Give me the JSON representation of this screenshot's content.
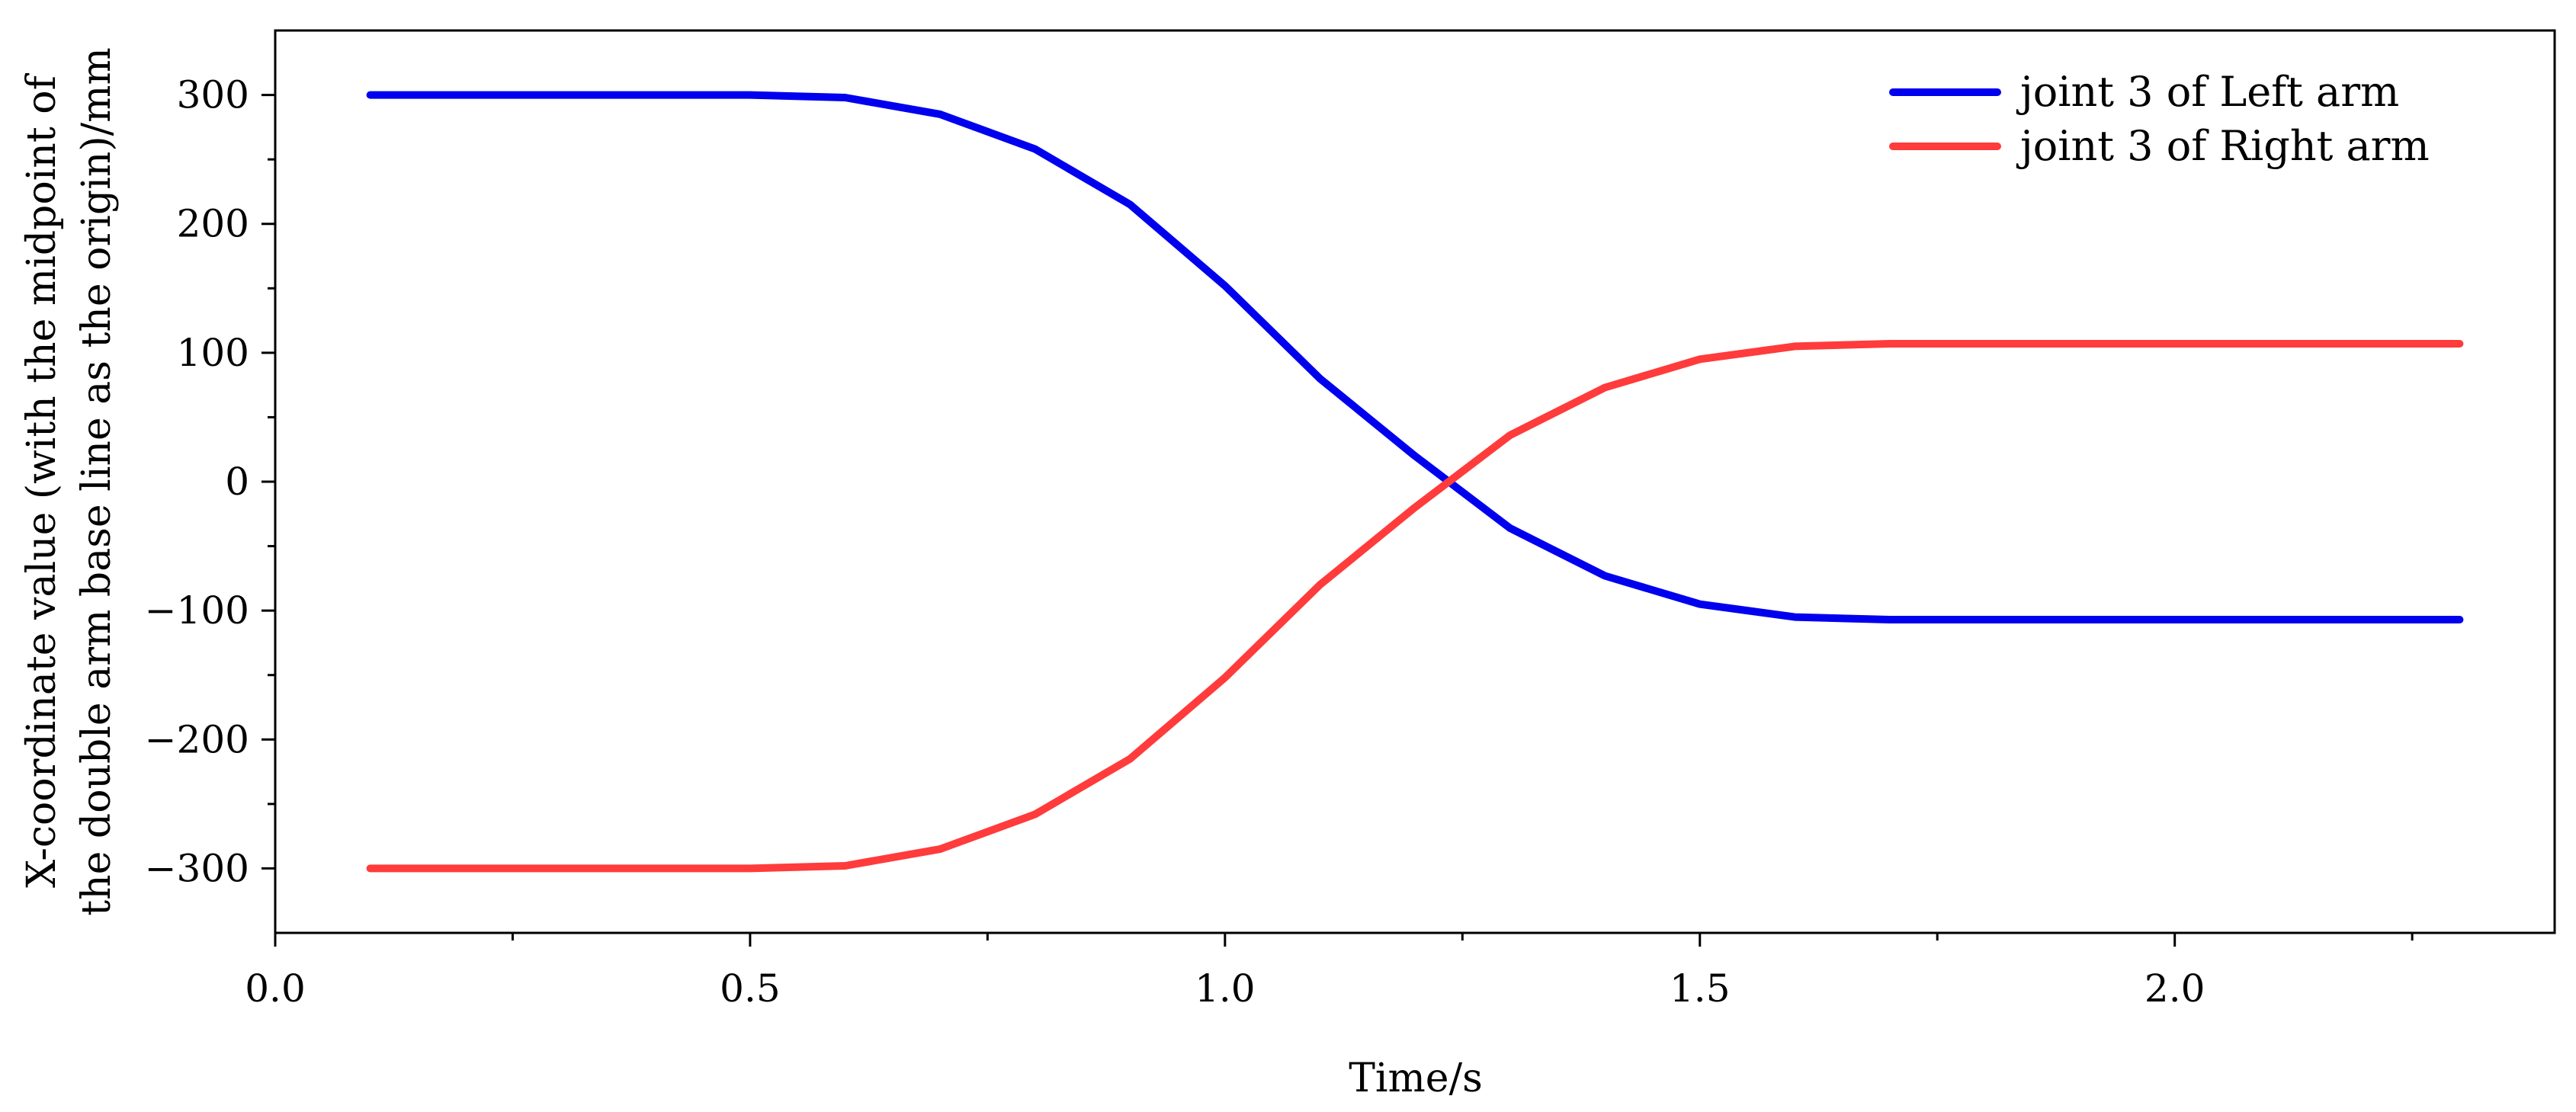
{
  "chart_data": {
    "type": "line",
    "title": "",
    "xlabel": "Time/s",
    "ylabel_lines": [
      "X-coordinate value (with the midpoint of",
      "the double arm base line as the origin)/mm"
    ],
    "xlim": [
      0.0,
      2.4
    ],
    "ylim": [
      -350,
      350
    ],
    "x_ticks": [
      0.0,
      0.5,
      1.0,
      1.5,
      2.0
    ],
    "x_tick_labels": [
      "0.0",
      "0.5",
      "1.0",
      "1.5",
      "2.0"
    ],
    "y_ticks": [
      300,
      200,
      100,
      0,
      -100,
      -200,
      -300
    ],
    "y_tick_labels": [
      "300",
      "200",
      "100",
      "0",
      "−100",
      "−200",
      "−300"
    ],
    "x_minor_step": 0.25,
    "y_minor_step": 50,
    "grid": false,
    "legend_position": "top-right",
    "series": [
      {
        "name": "joint 3 of Left arm",
        "color": "#0000ee",
        "x": [
          0.1,
          0.2,
          0.3,
          0.4,
          0.5,
          0.6,
          0.7,
          0.8,
          0.9,
          1.0,
          1.1,
          1.2,
          1.3,
          1.4,
          1.5,
          1.6,
          1.7,
          1.8,
          1.9,
          2.0,
          2.1,
          2.2,
          2.3
        ],
        "y": [
          300,
          300,
          300,
          300,
          300,
          298,
          285,
          258,
          215,
          152,
          80,
          20,
          -36,
          -73,
          -95,
          -105,
          -107,
          -107,
          -107,
          -107,
          -107,
          -107,
          -107
        ]
      },
      {
        "name": "joint 3 of Right arm",
        "color": "#ff3b3b",
        "x": [
          0.1,
          0.2,
          0.3,
          0.4,
          0.5,
          0.6,
          0.7,
          0.8,
          0.9,
          1.0,
          1.1,
          1.2,
          1.3,
          1.4,
          1.5,
          1.6,
          1.7,
          1.8,
          1.9,
          2.0,
          2.1,
          2.2,
          2.3
        ],
        "y": [
          -300,
          -300,
          -300,
          -300,
          -300,
          -298,
          -285,
          -258,
          -215,
          -152,
          -80,
          -20,
          36,
          73,
          95,
          105,
          107,
          107,
          107,
          107,
          107,
          107,
          107
        ]
      }
    ]
  }
}
